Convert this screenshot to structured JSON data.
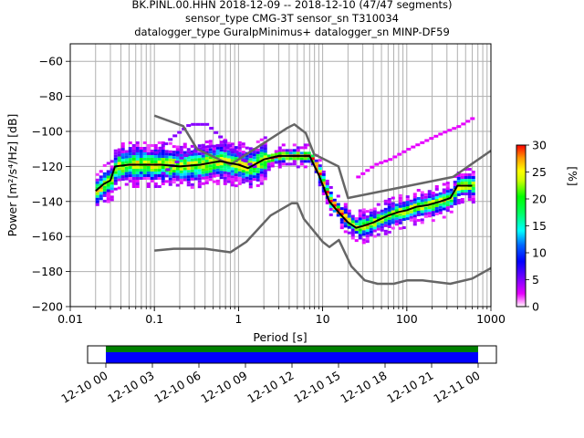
{
  "chart_data": {
    "type": "heatmap",
    "title_lines": [
      "BK.PINL.00.HHN   2018-12-09 -- 2018-12-10  (47/47 segments)",
      "sensor_type CMG-3T sensor_sn T310034",
      "datalogger_type GuralpMinimus+ datalogger_sn MINP-DF59"
    ],
    "xlabel": "Period [s]",
    "ylabel": "Power [m²/s⁴/Hz] [dB]",
    "xscale": "log",
    "xlim": [
      0.01,
      1000
    ],
    "ylim": [
      -200,
      -50
    ],
    "xticks": [
      0.01,
      0.1,
      1,
      10,
      100,
      1000
    ],
    "xtick_labels": [
      "0.01",
      "0.1",
      "1",
      "10",
      "100",
      "1000"
    ],
    "yticks": [
      -200,
      -180,
      -160,
      -140,
      -120,
      -100,
      -80,
      -60
    ],
    "ytick_labels": [
      "−200",
      "−180",
      "−160",
      "−140",
      "−120",
      "−100",
      "−80",
      "−60"
    ],
    "grid": true,
    "colorbar": {
      "label": "[%]",
      "range": [
        0,
        30
      ],
      "ticks": [
        0,
        5,
        10,
        15,
        20,
        25,
        30
      ],
      "tick_labels": [
        "0",
        "5",
        "10",
        "15",
        "20",
        "25",
        "30"
      ],
      "colormap": "pqlx"
    },
    "mode_curve": {
      "name": "mode",
      "color": "#000000",
      "period": [
        0.02,
        0.025,
        0.03,
        0.034,
        0.05,
        0.08,
        0.12,
        0.2,
        0.35,
        0.6,
        1.0,
        1.3,
        2,
        3,
        5,
        7,
        9,
        12,
        16,
        20,
        25,
        30,
        40,
        60,
        80,
        100,
        130,
        180,
        250,
        330,
        400,
        600
      ],
      "power": [
        -134,
        -130,
        -128,
        -120,
        -119,
        -119,
        -119,
        -120,
        -119,
        -117,
        -119,
        -121,
        -116,
        -114,
        -114,
        -114,
        -125,
        -140,
        -147,
        -152,
        -155,
        -154,
        -152,
        -148,
        -146,
        -145,
        -143,
        -142,
        -140,
        -138,
        -131,
        -131
      ]
    },
    "nhnm": {
      "name": "NHNM",
      "color": "#666666",
      "period": [
        0.1,
        0.22,
        0.32,
        0.8,
        3.8,
        4.6,
        6.3,
        7.9,
        15.4,
        20,
        354.8,
        1000
      ],
      "power": [
        -91,
        -97,
        -110,
        -119,
        -98,
        -96,
        -101,
        -113,
        -120,
        -138,
        -126,
        -111
      ]
    },
    "nlnm": {
      "name": "NLNM",
      "color": "#666666",
      "period": [
        0.1,
        0.17,
        0.4,
        0.8,
        1.24,
        2.4,
        4.3,
        5.0,
        6.0,
        10.0,
        12.0,
        15.6,
        21.9,
        31.6,
        45,
        70,
        101,
        154,
        328,
        600,
        1000
      ],
      "power": [
        -168,
        -167,
        -167,
        -169,
        -163,
        -148,
        -141,
        -141,
        -150,
        -163,
        -166,
        -162,
        -177,
        -185,
        -187,
        -187,
        -185,
        -185,
        -187,
        -184,
        -178
      ]
    },
    "outlier_paths": [
      {
        "period": [
          0.1,
          0.15,
          0.25,
          0.4,
          0.6,
          0.9,
          1.2
        ],
        "power": [
          -112,
          -104,
          -96,
          -96,
          -104,
          -112,
          -119
        ]
      },
      {
        "period": [
          0.12,
          0.2,
          0.35,
          0.6,
          0.9,
          1.2,
          1.6
        ],
        "power": [
          -124,
          -115,
          -109,
          -108,
          -112,
          -118,
          -121
        ]
      },
      {
        "period": [
          25,
          40,
          60,
          100,
          150,
          250,
          400,
          600
        ],
        "power": [
          -126,
          -119,
          -116,
          -110,
          -106,
          -101,
          -97,
          -92
        ]
      }
    ],
    "timeline": {
      "tick_labels": [
        "12-10 00",
        "12-10 03",
        "12-10 06",
        "12-10 09",
        "12-10 12",
        "12-10 15",
        "12-10 18",
        "12-10 21",
        "12-11 00"
      ],
      "data_colors": [
        "#008000",
        "#0000ff"
      ],
      "coverage_start": "12-10 00",
      "coverage_end": "12-11 00"
    }
  }
}
